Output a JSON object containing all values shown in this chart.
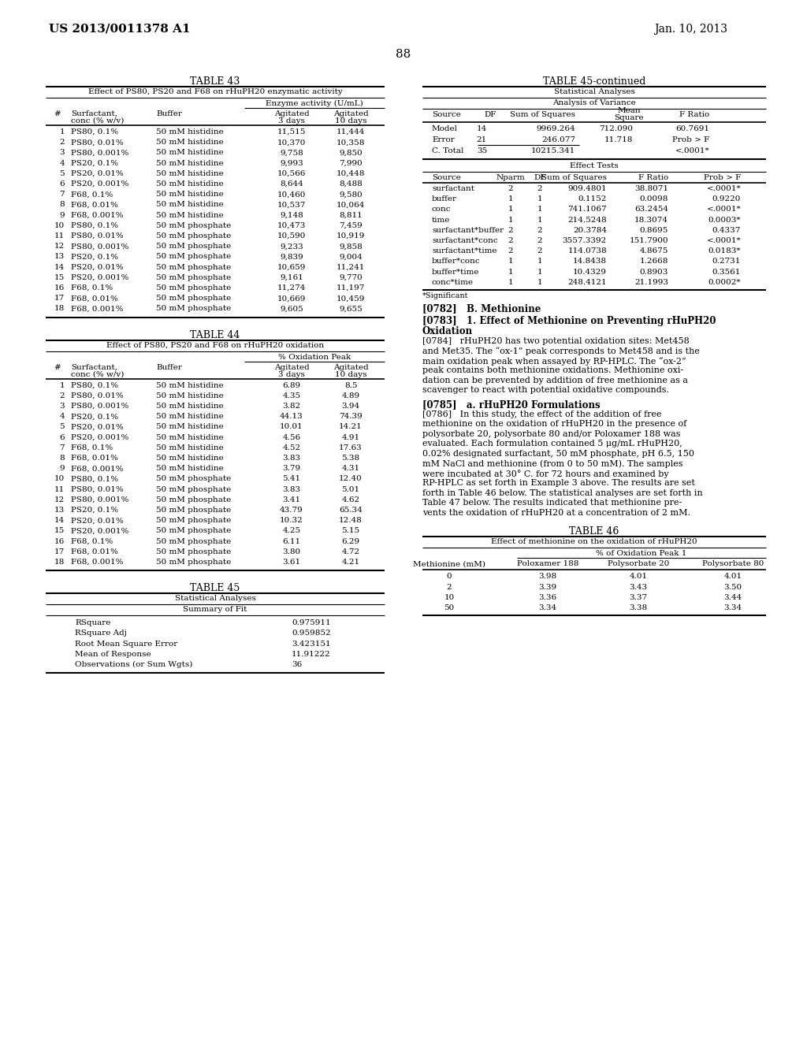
{
  "page_header_left": "US 2013/0011378 A1",
  "page_header_right": "Jan. 10, 2013",
  "page_number": "88",
  "background_color": "#ffffff",
  "table43_title": "TABLE 43",
  "table43_subtitle": "Effect of PS80, PS20 and F68 on rHuPH20 enzymatic activity",
  "table43_col_group": "Enzyme activity (U/mL)",
  "table43_data": [
    [
      "1",
      "PS80, 0.1%",
      "50 mM histidine",
      "11,515",
      "11,444"
    ],
    [
      "2",
      "PS80, 0.01%",
      "50 mM histidine",
      "10,370",
      "10,358"
    ],
    [
      "3",
      "PS80, 0.001%",
      "50 mM histidine",
      "9,758",
      "9,850"
    ],
    [
      "4",
      "PS20, 0.1%",
      "50 mM histidine",
      "9,993",
      "7,990"
    ],
    [
      "5",
      "PS20, 0.01%",
      "50 mM histidine",
      "10,566",
      "10,448"
    ],
    [
      "6",
      "PS20, 0.001%",
      "50 mM histidine",
      "8,644",
      "8,488"
    ],
    [
      "7",
      "F68, 0.1%",
      "50 mM histidine",
      "10,460",
      "9,580"
    ],
    [
      "8",
      "F68, 0.01%",
      "50 mM histidine",
      "10,537",
      "10,064"
    ],
    [
      "9",
      "F68, 0.001%",
      "50 mM histidine",
      "9,148",
      "8,811"
    ],
    [
      "10",
      "PS80, 0.1%",
      "50 mM phosphate",
      "10,473",
      "7,459"
    ],
    [
      "11",
      "PS80, 0.01%",
      "50 mM phosphate",
      "10,590",
      "10,919"
    ],
    [
      "12",
      "PS80, 0.001%",
      "50 mM phosphate",
      "9,233",
      "9,858"
    ],
    [
      "13",
      "PS20, 0.1%",
      "50 mM phosphate",
      "9,839",
      "9,004"
    ],
    [
      "14",
      "PS20, 0.01%",
      "50 mM phosphate",
      "10,659",
      "11,241"
    ],
    [
      "15",
      "PS20, 0.001%",
      "50 mM phosphate",
      "9,161",
      "9,770"
    ],
    [
      "16",
      "F68, 0.1%",
      "50 mM phosphate",
      "11,274",
      "11,197"
    ],
    [
      "17",
      "F68, 0.01%",
      "50 mM phosphate",
      "10,669",
      "10,459"
    ],
    [
      "18",
      "F68, 0.001%",
      "50 mM phosphate",
      "9,605",
      "9,655"
    ]
  ],
  "table44_title": "TABLE 44",
  "table44_subtitle": "Effect of PS80, PS20 and F68 on rHuPH20 oxidation",
  "table44_col_group": "% Oxidation Peak",
  "table44_data": [
    [
      "1",
      "PS80, 0.1%",
      "50 mM histidine",
      "6.89",
      "8.5"
    ],
    [
      "2",
      "PS80, 0.01%",
      "50 mM histidine",
      "4.35",
      "4.89"
    ],
    [
      "3",
      "PS80, 0.001%",
      "50 mM histidine",
      "3.82",
      "3.94"
    ],
    [
      "4",
      "PS20, 0.1%",
      "50 mM histidine",
      "44.13",
      "74.39"
    ],
    [
      "5",
      "PS20, 0.01%",
      "50 mM histidine",
      "10.01",
      "14.21"
    ],
    [
      "6",
      "PS20, 0.001%",
      "50 mM histidine",
      "4.56",
      "4.91"
    ],
    [
      "7",
      "F68, 0.1%",
      "50 mM histidine",
      "4.52",
      "17.63"
    ],
    [
      "8",
      "F68, 0.01%",
      "50 mM histidine",
      "3.83",
      "5.38"
    ],
    [
      "9",
      "F68, 0.001%",
      "50 mM histidine",
      "3.79",
      "4.31"
    ],
    [
      "10",
      "PS80, 0.1%",
      "50 mM phosphate",
      "5.41",
      "12.40"
    ],
    [
      "11",
      "PS80, 0.01%",
      "50 mM phosphate",
      "3.83",
      "5.01"
    ],
    [
      "12",
      "PS80, 0.001%",
      "50 mM phosphate",
      "3.41",
      "4.62"
    ],
    [
      "13",
      "PS20, 0.1%",
      "50 mM phosphate",
      "43.79",
      "65.34"
    ],
    [
      "14",
      "PS20, 0.01%",
      "50 mM phosphate",
      "10.32",
      "12.48"
    ],
    [
      "15",
      "PS20, 0.001%",
      "50 mM phosphate",
      "4.25",
      "5.15"
    ],
    [
      "16",
      "F68, 0.1%",
      "50 mM phosphate",
      "6.11",
      "6.29"
    ],
    [
      "17",
      "F68, 0.01%",
      "50 mM phosphate",
      "3.80",
      "4.72"
    ],
    [
      "18",
      "F68, 0.001%",
      "50 mM phosphate",
      "3.61",
      "4.21"
    ]
  ],
  "table45_title": "TABLE 45",
  "table45_subtitle": "Statistical Analyses",
  "table45_section1": "Summary of Fit",
  "table45_fit_data": [
    [
      "RSquare",
      "0.975911"
    ],
    [
      "RSquare Adj",
      "0.959852"
    ],
    [
      "Root Mean Square Error",
      "3.423151"
    ],
    [
      "Mean of Response",
      "11.91222"
    ],
    [
      "Observations (or Sum Wgts)",
      "36"
    ]
  ],
  "table45c_title": "TABLE 45-continued",
  "table45c_subtitle": "Statistical Analyses",
  "table45c_section1": "Analysis of Variance",
  "table45c_anova_data": [
    [
      "Model",
      "14",
      "9969.264",
      "712.090",
      "60.7691"
    ],
    [
      "Error",
      "21",
      "246.077",
      "11.718",
      "Prob > F"
    ],
    [
      "C. Total",
      "35",
      "10215.341",
      "",
      "<.0001*"
    ]
  ],
  "table45c_section2": "Effect Tests",
  "table45c_effect_data": [
    [
      "surfactant",
      "2",
      "2",
      "909.4801",
      "38.8071",
      "<.0001*"
    ],
    [
      "buffer",
      "1",
      "1",
      "0.1152",
      "0.0098",
      "0.9220"
    ],
    [
      "conc",
      "1",
      "1",
      "741.1067",
      "63.2454",
      "<.0001*"
    ],
    [
      "time",
      "1",
      "1",
      "214.5248",
      "18.3074",
      "0.0003*"
    ],
    [
      "surfactant*buffer",
      "2",
      "2",
      "20.3784",
      "0.8695",
      "0.4337"
    ],
    [
      "surfactant*conc",
      "2",
      "2",
      "3557.3392",
      "151.7900",
      "<.0001*"
    ],
    [
      "surfactant*time",
      "2",
      "2",
      "114.0738",
      "4.8675",
      "0.0183*"
    ],
    [
      "buffer*conc",
      "1",
      "1",
      "14.8438",
      "1.2668",
      "0.2731"
    ],
    [
      "buffer*time",
      "1",
      "1",
      "10.4329",
      "0.8903",
      "0.3561"
    ],
    [
      "conc*time",
      "1",
      "1",
      "248.4121",
      "21.1993",
      "0.0002*"
    ]
  ],
  "table45c_footnote": "*Significant",
  "para0782": "[0782]   B. Methionine",
  "para0783_line1": "[0783]   1. Effect of Methionine on Preventing rHuPH20",
  "para0783_line2": "Oxidation",
  "para0784_lines": [
    "[0784]   rHuPH20 has two potential oxidation sites: Met458",
    "and Met35. The “ox-1” peak corresponds to Met458 and is the",
    "main oxidation peak when assayed by RP-HPLC. The “ox-2”",
    "peak contains both methionine oxidations. Methionine oxi-",
    "dation can be prevented by addition of free methionine as a",
    "scavenger to react with potential oxidative compounds."
  ],
  "para0785": "[0785]   a. rHuPH20 Formulations",
  "para0786_lines": [
    "[0786]   In this study, the effect of the addition of free",
    "methionine on the oxidation of rHuPH20 in the presence of",
    "polysorbate 20, polysorbate 80 and/or Poloxamer 188 was",
    "evaluated. Each formulation contained 5 μg/mL rHuPH20,",
    "0.02% designated surfactant, 50 mM phosphate, pH 6.5, 150",
    "mM NaCl and methionine (from 0 to 50 mM). The samples",
    "were incubated at 30° C. for 72 hours and examined by",
    "RP-HPLC as set forth in Example 3 above. The results are set",
    "forth in Table 46 below. The statistical analyses are set forth in",
    "Table 47 below. The results indicated that methionine pre-",
    "vents the oxidation of rHuPH20 at a concentration of 2 mM."
  ],
  "table46_title": "TABLE 46",
  "table46_subtitle": "Effect of methionine on the oxidation of rHuPH20",
  "table46_col_group": "% of Oxidation Peak 1",
  "table46_data": [
    [
      "0",
      "3.98",
      "4.01",
      "4.01"
    ],
    [
      "2",
      "3.39",
      "3.43",
      "3.50"
    ],
    [
      "10",
      "3.36",
      "3.37",
      "3.44"
    ],
    [
      "50",
      "3.34",
      "3.38",
      "3.34"
    ]
  ]
}
